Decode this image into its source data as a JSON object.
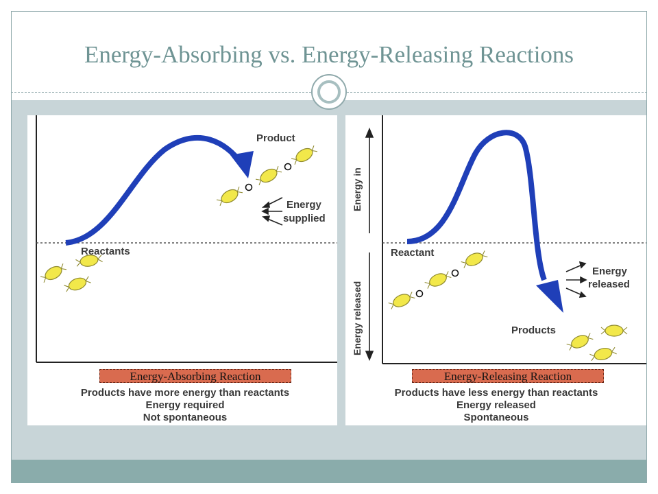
{
  "slide": {
    "title": "Energy-Absorbing vs. Energy-Releasing Reactions"
  },
  "left_panel": {
    "caption": "Energy-Absorbing Reaction",
    "label_product": "Product",
    "label_reactants": "Reactants",
    "label_energy_1": "Energy",
    "label_energy_2": "supplied",
    "notes": [
      "Products have more energy than reactants",
      "Energy required",
      "Not spontaneous"
    ]
  },
  "right_panel": {
    "caption": "Energy-Releasing Reaction",
    "label_reactant": "Reactant",
    "label_products": "Products",
    "label_energy_1": "Energy",
    "label_energy_2": "released",
    "axis_energy_in": "Energy in",
    "axis_energy_released": "Energy released",
    "notes": [
      "Products have less energy than reactants",
      "Energy released",
      "Spontaneous"
    ]
  },
  "colors": {
    "title": "#6f9494",
    "band": "#c8d5d8",
    "bottom_bar": "#8aacab",
    "arrow": "#1f3fb8",
    "molecule": "#f2e84a",
    "caption_bg": "#d96b4f"
  }
}
